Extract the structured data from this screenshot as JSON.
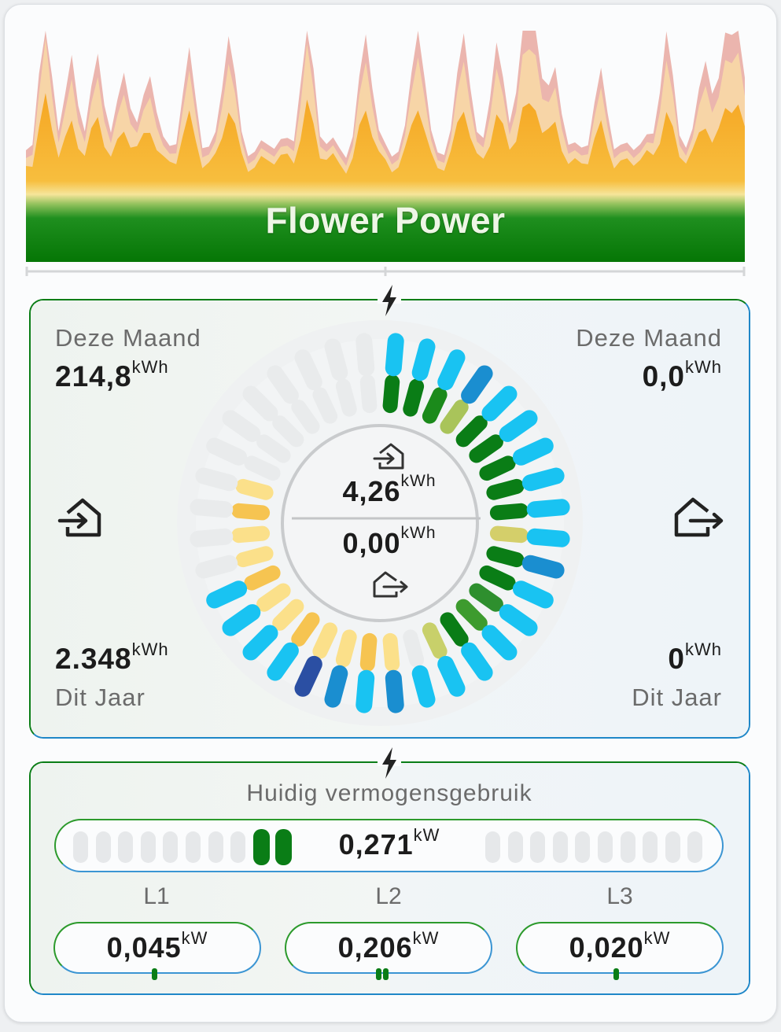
{
  "title": "Flower Power",
  "energy_panel": {
    "left": {
      "month_label": "Deze Maand",
      "month_value": "214,8",
      "month_unit": "kWh",
      "year_value": "2.348",
      "year_unit": "kWh",
      "year_label": "Dit Jaar",
      "icon": "house-import-icon"
    },
    "right": {
      "month_label": "Deze Maand",
      "month_value": "0,0",
      "month_unit": "kWh",
      "year_value": "0",
      "year_unit": "kWh",
      "year_label": "Dit Jaar",
      "icon": "house-export-icon"
    },
    "center": {
      "import_value": "4,26",
      "import_unit": "kWh",
      "export_value": "0,00",
      "export_unit": "kWh"
    }
  },
  "power_panel": {
    "title": "Huidig vermogensgebruik",
    "total_value": "0,271",
    "total_unit": "kW",
    "total_level_segments": 2,
    "phases": [
      {
        "label": "L1",
        "value": "0,045",
        "unit": "kW",
        "ticks": 1
      },
      {
        "label": "L2",
        "value": "0,206",
        "unit": "kW",
        "ticks": 2
      },
      {
        "label": "L3",
        "value": "0,020",
        "unit": "kW",
        "ticks": 1
      }
    ]
  },
  "colors": {
    "import_green": "#0a7d16",
    "export_blue": "#1f87c8",
    "header_gradient": [
      "#f9d59a",
      "#f5a623",
      "#0a7d16"
    ]
  }
}
